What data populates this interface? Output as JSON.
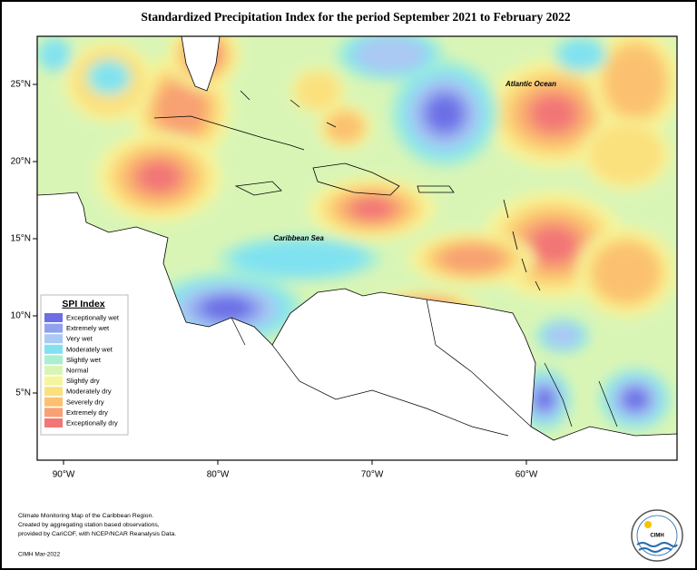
{
  "title": "Standardized Precipitation Index for the period September 2021 to February 2022",
  "map": {
    "lat_ticks": [
      {
        "value": 25,
        "label": "25°N"
      },
      {
        "value": 20,
        "label": "20°N"
      },
      {
        "value": 15,
        "label": "15°N"
      },
      {
        "value": 10,
        "label": "10°N"
      },
      {
        "value": 5,
        "label": "5°N"
      }
    ],
    "lon_ticks": [
      {
        "value": -90,
        "label": "90°W"
      },
      {
        "value": -80,
        "label": "80°W"
      },
      {
        "value": -70,
        "label": "70°W"
      },
      {
        "value": -60,
        "label": "60°W"
      }
    ],
    "labels": [
      "Atlantic Ocean",
      "Caribbean Sea"
    ]
  },
  "legend": {
    "title": "SPI Index",
    "entries": [
      {
        "name": "Exceptionally wet",
        "color": "#6c6ee6"
      },
      {
        "name": "Extremely wet",
        "color": "#8fa2ee"
      },
      {
        "name": "Very wet",
        "color": "#aac9f3"
      },
      {
        "name": "Moderately wet",
        "color": "#80e2f0"
      },
      {
        "name": "Slightly wet",
        "color": "#aaefd2"
      },
      {
        "name": "Normal",
        "color": "#d9f5b6"
      },
      {
        "name": "Slightly dry",
        "color": "#f6f59c"
      },
      {
        "name": "Moderately dry",
        "color": "#fbe07e"
      },
      {
        "name": "Severely dry",
        "color": "#fbc170"
      },
      {
        "name": "Extremely dry",
        "color": "#f8a172"
      },
      {
        "name": "Exceptionally dry",
        "color": "#f27676"
      }
    ]
  },
  "footnote": [
    "Climate Monitoring Map of the Caribbean Region.",
    "Created by aggregating station based observations,",
    "provided by CariCOF, with NCEP/NCAR Reanalysis Data."
  ],
  "credit": "CIMH Mar-2022",
  "logo": "CIMH"
}
